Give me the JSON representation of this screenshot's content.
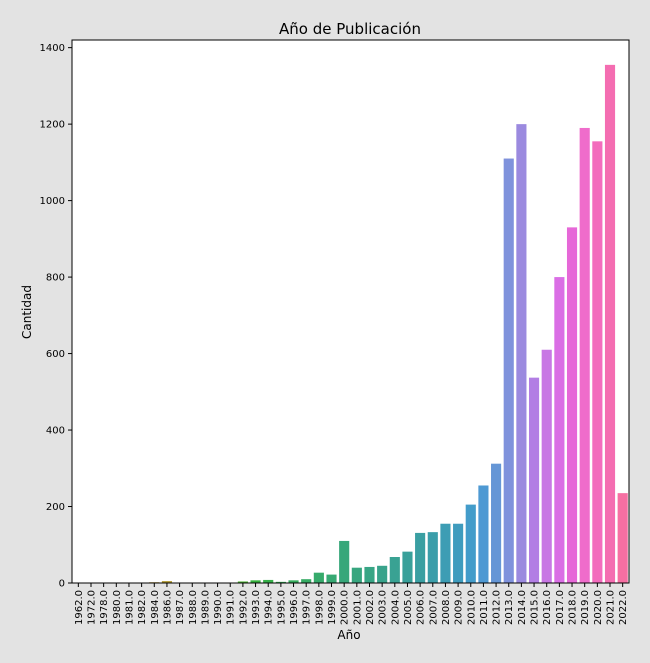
{
  "chart_data": {
    "type": "bar",
    "title": "Año de Publicación",
    "xlabel": "Año",
    "ylabel": "Cantidad",
    "ylim": [
      0,
      1420
    ],
    "yticks": [
      0,
      200,
      400,
      600,
      800,
      1000,
      1200,
      1400
    ],
    "ytick_labels": [
      "0",
      "200",
      "400",
      "600",
      "800",
      "1000",
      "1200",
      "1400"
    ],
    "grid": false,
    "legend": "none",
    "categories": [
      "1962.0",
      "1972.0",
      "1978.0",
      "1980.0",
      "1981.0",
      "1982.0",
      "1984.0",
      "1986.0",
      "1987.0",
      "1988.0",
      "1989.0",
      "1990.0",
      "1991.0",
      "1992.0",
      "1993.0",
      "1994.0",
      "1995.0",
      "1996.0",
      "1997.0",
      "1998.0",
      "1999.0",
      "2000.0",
      "2001.0",
      "2002.0",
      "2003.0",
      "2004.0",
      "2005.0",
      "2006.0",
      "2007.0",
      "2008.0",
      "2009.0",
      "2010.0",
      "2011.0",
      "2012.0",
      "2013.0",
      "2014.0",
      "2015.0",
      "2016.0",
      "2017.0",
      "2018.0",
      "2019.0",
      "2020.0",
      "2021.0",
      "2022.0"
    ],
    "values": [
      1,
      1,
      1,
      1,
      1,
      1,
      2,
      5,
      1,
      1,
      1,
      1,
      1,
      4,
      7,
      8,
      3,
      7,
      10,
      27,
      22,
      110,
      40,
      42,
      45,
      68,
      82,
      131,
      133,
      155,
      155,
      205,
      255,
      312,
      1110,
      1200,
      537,
      610,
      800,
      930,
      1190,
      1155,
      1355,
      235
    ],
    "colors": [
      "#f77189",
      "#f4756f",
      "#ef7b37",
      "#e08432",
      "#d38c32",
      "#c69232",
      "#bc9632",
      "#b29a31",
      "#a79e31",
      "#9ca231",
      "#8ea631",
      "#7ea930",
      "#68ae30",
      "#4db332",
      "#34b13c",
      "#35b049",
      "#35ae54",
      "#36ad5d",
      "#36ac64",
      "#36aa6b",
      "#37a973",
      "#37a77a",
      "#37a67f",
      "#38a585",
      "#38a38b",
      "#39a293",
      "#39a09a",
      "#3a9fa2",
      "#3b9eaa",
      "#3d9db4",
      "#3f9cbe",
      "#439cca",
      "#4e99d3",
      "#6596d6",
      "#7f92dc",
      "#9b8adf",
      "#b27ee4",
      "#c877e4",
      "#da6ee5",
      "#e668d8",
      "#ef6ccb",
      "#f36cbd",
      "#f46db1",
      "#f66fa2"
    ]
  }
}
